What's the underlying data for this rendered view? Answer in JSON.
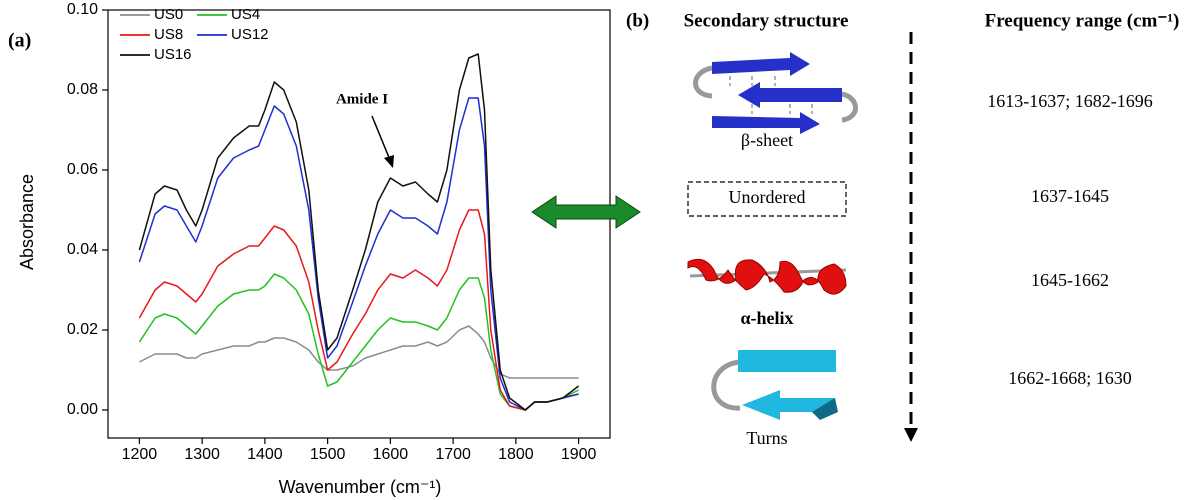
{
  "chart_data": {
    "type": "line",
    "panel_label": "(a)",
    "x_label": "Wavenumber (cm⁻¹)",
    "y_label": "Absorbance",
    "annotation": "Amide I",
    "x": [
      1200,
      1225,
      1240,
      1260,
      1275,
      1290,
      1300,
      1325,
      1350,
      1375,
      1390,
      1400,
      1415,
      1430,
      1450,
      1470,
      1485,
      1500,
      1515,
      1540,
      1560,
      1580,
      1600,
      1620,
      1640,
      1660,
      1675,
      1690,
      1710,
      1725,
      1740,
      1750,
      1760,
      1775,
      1790,
      1815,
      1830,
      1850,
      1875,
      1900
    ],
    "series": [
      {
        "name": "US0",
        "color": "#8c8c8c",
        "values": [
          0.012,
          0.014,
          0.014,
          0.014,
          0.013,
          0.013,
          0.014,
          0.015,
          0.016,
          0.016,
          0.017,
          0.017,
          0.018,
          0.018,
          0.017,
          0.015,
          0.012,
          0.01,
          0.01,
          0.011,
          0.013,
          0.014,
          0.015,
          0.016,
          0.016,
          0.017,
          0.016,
          0.017,
          0.02,
          0.021,
          0.019,
          0.017,
          0.013,
          0.009,
          0.008,
          0.008,
          0.008,
          0.008,
          0.008,
          0.008
        ]
      },
      {
        "name": "US4",
        "color": "#22c322",
        "values": [
          0.017,
          0.023,
          0.024,
          0.023,
          0.021,
          0.019,
          0.021,
          0.026,
          0.029,
          0.03,
          0.03,
          0.031,
          0.034,
          0.033,
          0.03,
          0.024,
          0.014,
          0.006,
          0.007,
          0.012,
          0.016,
          0.02,
          0.023,
          0.022,
          0.022,
          0.021,
          0.02,
          0.023,
          0.03,
          0.033,
          0.033,
          0.028,
          0.015,
          0.004,
          0.001,
          0.0,
          0.002,
          0.002,
          0.003,
          0.005
        ]
      },
      {
        "name": "US8",
        "color": "#e8191c",
        "values": [
          0.023,
          0.03,
          0.032,
          0.031,
          0.029,
          0.027,
          0.029,
          0.036,
          0.039,
          0.041,
          0.041,
          0.043,
          0.046,
          0.045,
          0.041,
          0.032,
          0.02,
          0.01,
          0.012,
          0.019,
          0.024,
          0.03,
          0.034,
          0.033,
          0.035,
          0.033,
          0.031,
          0.035,
          0.045,
          0.05,
          0.05,
          0.044,
          0.02,
          0.005,
          0.001,
          0.0,
          0.002,
          0.002,
          0.003,
          0.004
        ]
      },
      {
        "name": "US12",
        "color": "#1f2fd0",
        "values": [
          0.037,
          0.049,
          0.051,
          0.05,
          0.046,
          0.042,
          0.046,
          0.058,
          0.063,
          0.065,
          0.066,
          0.07,
          0.076,
          0.074,
          0.066,
          0.05,
          0.028,
          0.013,
          0.016,
          0.027,
          0.036,
          0.044,
          0.05,
          0.048,
          0.048,
          0.046,
          0.044,
          0.052,
          0.07,
          0.078,
          0.078,
          0.066,
          0.03,
          0.008,
          0.002,
          0.0,
          0.002,
          0.002,
          0.003,
          0.004
        ]
      },
      {
        "name": "US16",
        "color": "#111111",
        "values": [
          0.04,
          0.054,
          0.056,
          0.055,
          0.05,
          0.046,
          0.05,
          0.063,
          0.068,
          0.071,
          0.071,
          0.075,
          0.082,
          0.08,
          0.072,
          0.055,
          0.03,
          0.015,
          0.018,
          0.03,
          0.04,
          0.052,
          0.058,
          0.056,
          0.057,
          0.054,
          0.052,
          0.06,
          0.08,
          0.088,
          0.089,
          0.075,
          0.035,
          0.01,
          0.003,
          0.0,
          0.002,
          0.002,
          0.003,
          0.006
        ]
      }
    ],
    "xlim": [
      1150,
      1950
    ],
    "ylim": [
      -0.007,
      0.1
    ],
    "xticks": [
      1200,
      1300,
      1400,
      1500,
      1600,
      1700,
      1800,
      1900
    ],
    "yticks": [
      {
        "value": 0,
        "label": "0.00"
      },
      {
        "value": 0.02,
        "label": "0.02"
      },
      {
        "value": 0.04,
        "label": "0.04"
      },
      {
        "value": 0.06,
        "label": "0.06"
      },
      {
        "value": 0.08,
        "label": "0.08"
      },
      {
        "value": 0.1,
        "label": "0.10"
      }
    ]
  },
  "diagram": {
    "panel_label": "(b)",
    "structure_header": "Secondary structure",
    "range_header": "Frequency range (cm⁻¹)",
    "rows": [
      {
        "structure": "β-sheet",
        "range": "1613-1637; 1682-1696"
      },
      {
        "structure": "Unordered",
        "range": "1637-1645"
      },
      {
        "structure": "α-helix",
        "range": "1645-1662"
      },
      {
        "structure": "Turns",
        "range": "1662-1668; 1630"
      }
    ]
  }
}
